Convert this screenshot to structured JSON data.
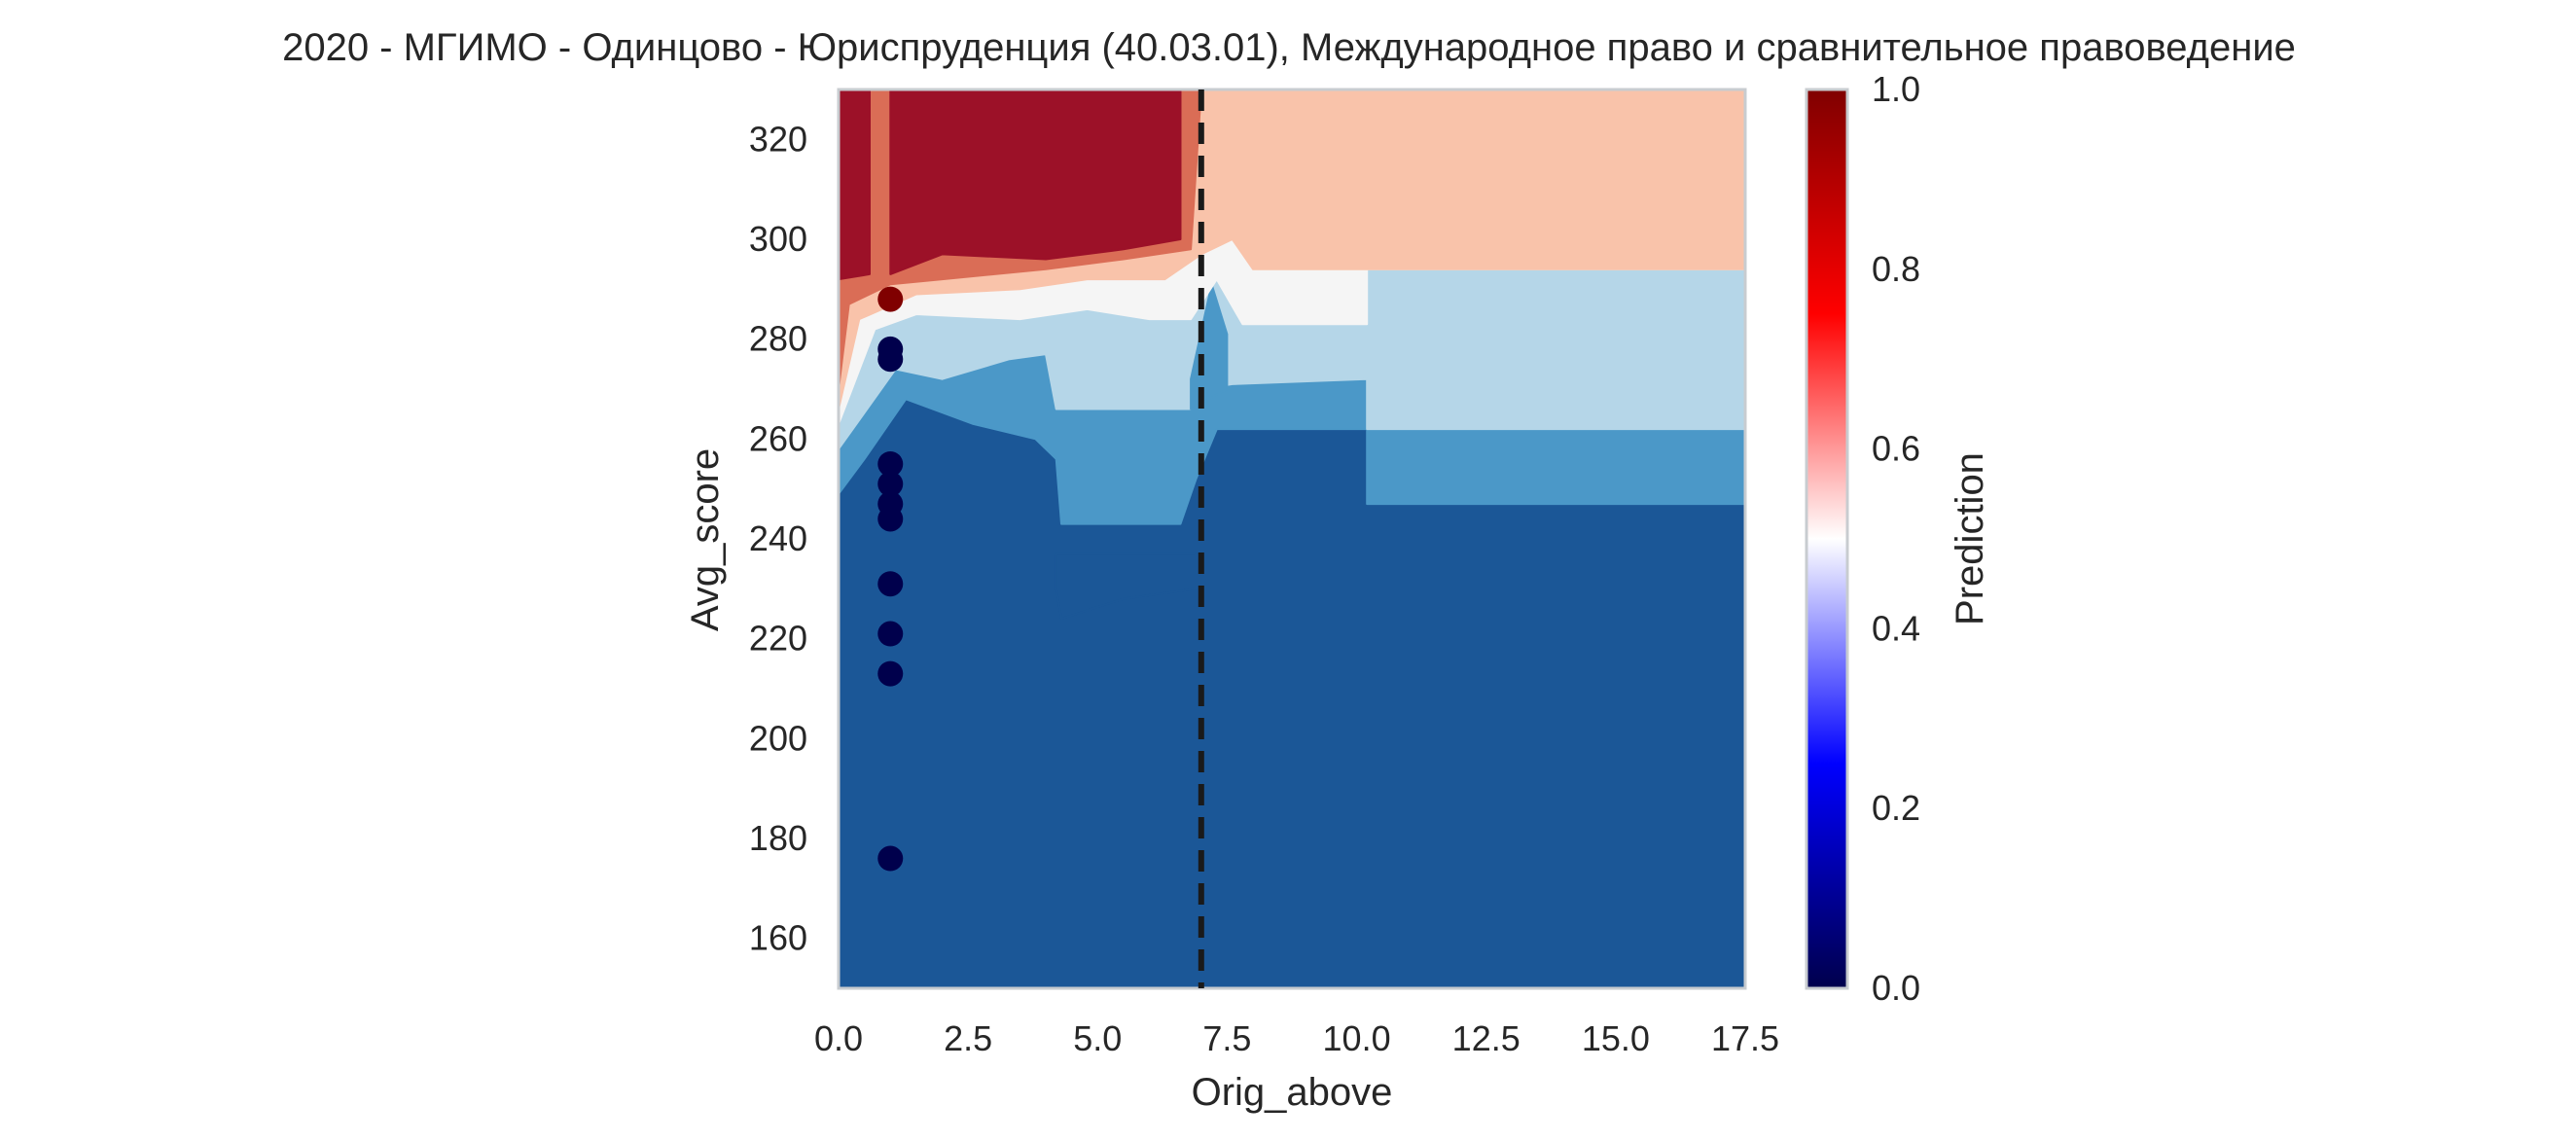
{
  "chart_data": {
    "type": "heatmap",
    "title": "2020 - МГИМО - Одинцово - Юриспруденция (40.03.01), Международное право и сравнительное правоведение",
    "xlabel": "Orig_above",
    "ylabel": "Avg_score",
    "xlim": [
      0,
      17.5
    ],
    "ylim": [
      150,
      330
    ],
    "x_ticks": [
      "0.0",
      "2.5",
      "5.0",
      "7.5",
      "10.0",
      "12.5",
      "15.0",
      "17.5"
    ],
    "y_ticks": [
      "160",
      "180",
      "200",
      "220",
      "240",
      "260",
      "280",
      "300",
      "320"
    ],
    "grid": false,
    "threshold_line": {
      "x": 7.0,
      "style": "dashed",
      "color": "#1a1a1a"
    },
    "colorbar": {
      "label": "Prediction",
      "range": [
        0.0,
        1.0
      ],
      "ticks": [
        "0.0",
        "0.2",
        "0.4",
        "0.6",
        "0.8",
        "1.0"
      ],
      "colormap": "seismic"
    },
    "contour_levels": [
      {
        "range": [
          0.0,
          0.1
        ],
        "color": "#1b5797"
      },
      {
        "range": [
          0.1,
          0.2
        ],
        "color": "#4b98c8"
      },
      {
        "range": [
          0.2,
          0.3
        ],
        "color": "#b5d6e8"
      },
      {
        "range": [
          0.3,
          0.5
        ],
        "color": "#f5f5f5"
      },
      {
        "range": [
          0.5,
          0.7
        ],
        "color": "#f9c3aa"
      },
      {
        "range": [
          0.7,
          0.8
        ],
        "color": "#da6d56"
      },
      {
        "range": [
          0.8,
          1.0
        ],
        "color": "#9c1128"
      }
    ],
    "points": [
      {
        "x": 1,
        "y": 288,
        "value": 1
      },
      {
        "x": 1,
        "y": 278,
        "value": 0
      },
      {
        "x": 1,
        "y": 276,
        "value": 0
      },
      {
        "x": 1,
        "y": 255,
        "value": 0
      },
      {
        "x": 1,
        "y": 251,
        "value": 0
      },
      {
        "x": 1,
        "y": 247,
        "value": 0
      },
      {
        "x": 1,
        "y": 244,
        "value": 0
      },
      {
        "x": 1,
        "y": 231,
        "value": 0
      },
      {
        "x": 1,
        "y": 221,
        "value": 0
      },
      {
        "x": 1,
        "y": 213,
        "value": 0
      },
      {
        "x": 1,
        "y": 176,
        "value": 0
      }
    ],
    "point_colors": {
      "0": "#00004c",
      "1": "#800000"
    }
  }
}
